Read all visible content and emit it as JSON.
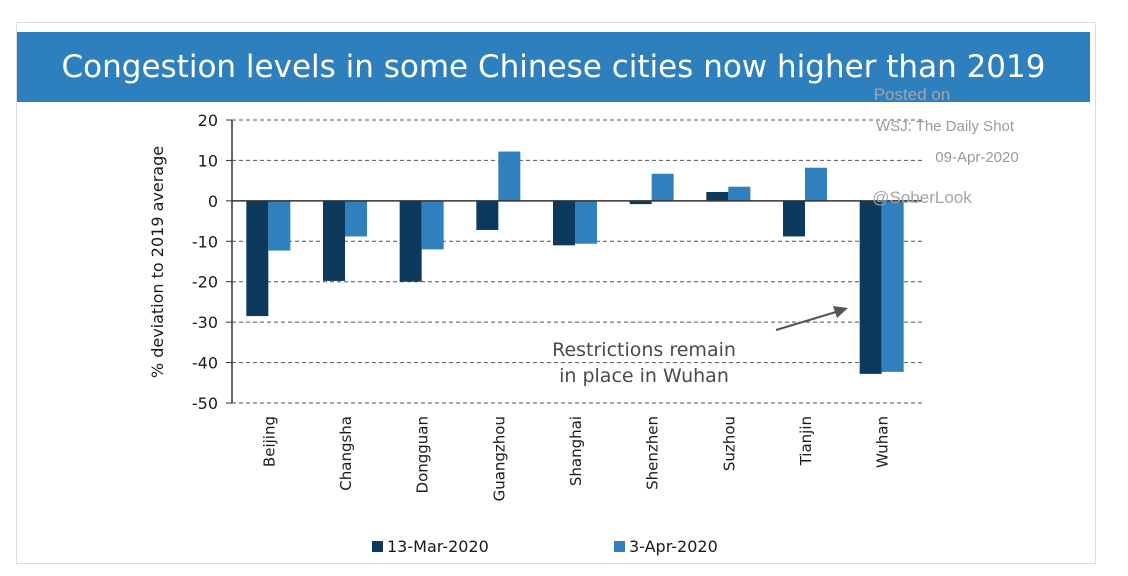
{
  "chart_data": {
    "type": "bar",
    "title": "Congestion levels in some Chinese cities now higher than 2019",
    "ylabel": "% deviation to 2019 average",
    "xlabel": "",
    "ylim": [
      -50,
      20
    ],
    "yticks": [
      20,
      10,
      0,
      -10,
      -20,
      -30,
      -40,
      -50
    ],
    "grid": "horizontal dashed",
    "legend_position": "bottom",
    "categories": [
      "Beijing",
      "Changsha",
      "Dongguan",
      "Guangzhou",
      "Shanghai",
      "Shenzhen",
      "Suzhou",
      "Tianjin",
      "Wuhan"
    ],
    "series": [
      {
        "name": "13-Mar-2020",
        "color": "#0d3a5c",
        "values": [
          -28.5,
          -19.8,
          -20,
          -7.2,
          -11,
          -0.8,
          2.2,
          -8.8,
          -42.8
        ]
      },
      {
        "name": "3-Apr-2020",
        "color": "#2f80bd",
        "values": [
          -12.3,
          -8.8,
          -12,
          12.2,
          -10.6,
          6.7,
          3.5,
          8.2,
          -42.3
        ]
      }
    ],
    "annotation": {
      "line1": "Restrictions remain",
      "line2": "in place in Wuhan"
    }
  },
  "watermark": {
    "line1": "Posted on",
    "line2": "WSJ: The Daily Shot",
    "line3": "09-Apr-2020",
    "line4": "@SoberLook"
  }
}
